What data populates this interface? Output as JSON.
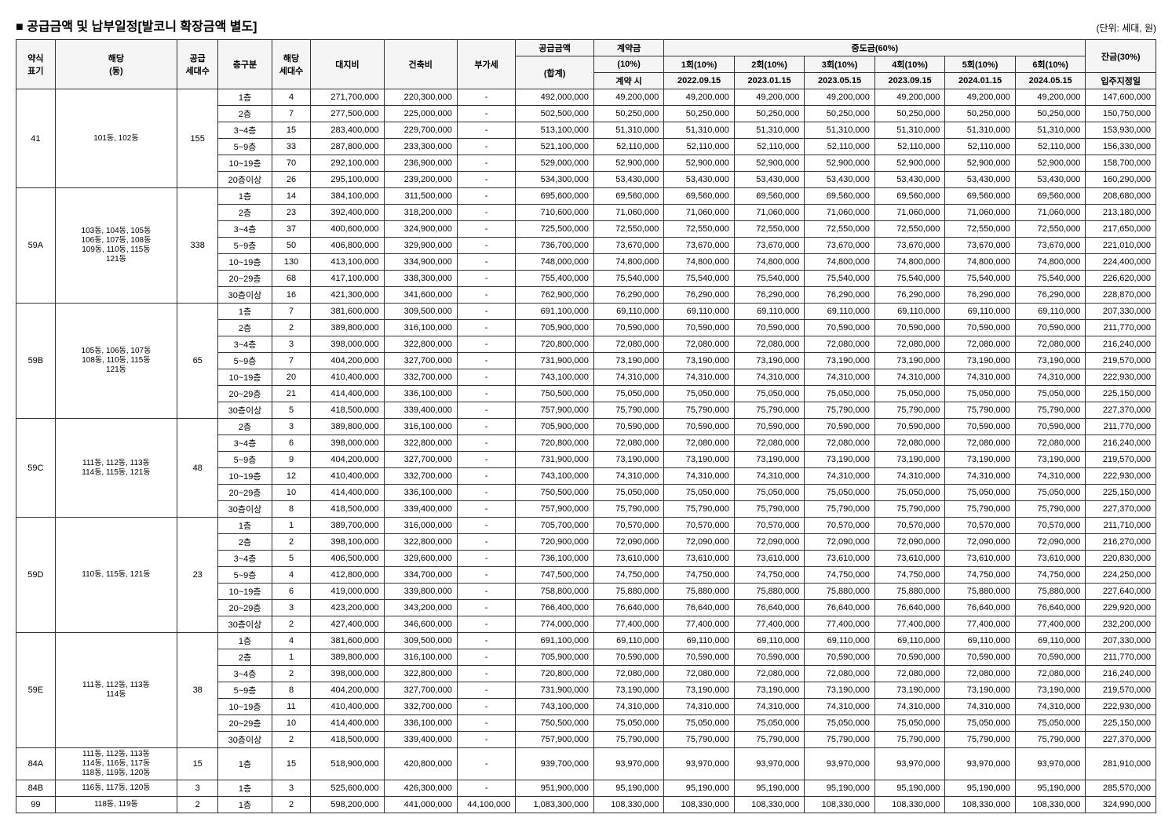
{
  "title": "■ 공급금액 및 납부일정[발코니 확장금액 별도]",
  "unit": "(단위: 세대, 원)",
  "headers": {
    "yak": "약식\n표기",
    "dong": "해당\n(동)",
    "supply": "공급\n세대수",
    "floor": "층구분",
    "count": "해당\n세대수",
    "land": "대지비",
    "build": "건축비",
    "vat": "부가세",
    "total1": "공급금액",
    "total2": "(합계)",
    "contract1": "계약금",
    "contract2": "(10%)",
    "contract3": "계약 시",
    "mid_group": "중도금(60%)",
    "mid1": "1회(10%)",
    "mid2": "2회(10%)",
    "mid3": "3회(10%)",
    "mid4": "4회(10%)",
    "mid5": "5회(10%)",
    "mid6": "6회(10%)",
    "date1": "2022.09.15",
    "date2": "2023.01.15",
    "date3": "2023.05.15",
    "date4": "2023.09.15",
    "date5": "2024.01.15",
    "date6": "2024.05.15",
    "remain": "잔금(30%)",
    "remain_date": "입주지정일"
  },
  "groups": [
    {
      "yak": "41",
      "dong": "101동, 102동",
      "supply": "155",
      "rows": [
        {
          "floor": "1층",
          "count": "4",
          "land": "271,700,000",
          "build": "220,300,000",
          "vat": "-",
          "total": "492,000,000",
          "contract": "49,200,000",
          "mid": "49,200,000",
          "remain": "147,600,000"
        },
        {
          "floor": "2층",
          "count": "7",
          "land": "277,500,000",
          "build": "225,000,000",
          "vat": "-",
          "total": "502,500,000",
          "contract": "50,250,000",
          "mid": "50,250,000",
          "remain": "150,750,000"
        },
        {
          "floor": "3~4층",
          "count": "15",
          "land": "283,400,000",
          "build": "229,700,000",
          "vat": "-",
          "total": "513,100,000",
          "contract": "51,310,000",
          "mid": "51,310,000",
          "remain": "153,930,000"
        },
        {
          "floor": "5~9층",
          "count": "33",
          "land": "287,800,000",
          "build": "233,300,000",
          "vat": "-",
          "total": "521,100,000",
          "contract": "52,110,000",
          "mid": "52,110,000",
          "remain": "156,330,000"
        },
        {
          "floor": "10~19층",
          "count": "70",
          "land": "292,100,000",
          "build": "236,900,000",
          "vat": "-",
          "total": "529,000,000",
          "contract": "52,900,000",
          "mid": "52,900,000",
          "remain": "158,700,000"
        },
        {
          "floor": "20층이상",
          "count": "26",
          "land": "295,100,000",
          "build": "239,200,000",
          "vat": "-",
          "total": "534,300,000",
          "contract": "53,430,000",
          "mid": "53,430,000",
          "remain": "160,290,000"
        }
      ]
    },
    {
      "yak": "59A",
      "dong": "103동, 104동, 105동\n106동, 107동, 108동\n109동, 110동, 115동\n121동",
      "supply": "338",
      "rows": [
        {
          "floor": "1층",
          "count": "14",
          "land": "384,100,000",
          "build": "311,500,000",
          "vat": "-",
          "total": "695,600,000",
          "contract": "69,560,000",
          "mid": "69,560,000",
          "remain": "208,680,000"
        },
        {
          "floor": "2층",
          "count": "23",
          "land": "392,400,000",
          "build": "318,200,000",
          "vat": "-",
          "total": "710,600,000",
          "contract": "71,060,000",
          "mid": "71,060,000",
          "remain": "213,180,000"
        },
        {
          "floor": "3~4층",
          "count": "37",
          "land": "400,600,000",
          "build": "324,900,000",
          "vat": "-",
          "total": "725,500,000",
          "contract": "72,550,000",
          "mid": "72,550,000",
          "remain": "217,650,000"
        },
        {
          "floor": "5~9층",
          "count": "50",
          "land": "406,800,000",
          "build": "329,900,000",
          "vat": "-",
          "total": "736,700,000",
          "contract": "73,670,000",
          "mid": "73,670,000",
          "remain": "221,010,000"
        },
        {
          "floor": "10~19층",
          "count": "130",
          "land": "413,100,000",
          "build": "334,900,000",
          "vat": "-",
          "total": "748,000,000",
          "contract": "74,800,000",
          "mid": "74,800,000",
          "remain": "224,400,000"
        },
        {
          "floor": "20~29층",
          "count": "68",
          "land": "417,100,000",
          "build": "338,300,000",
          "vat": "-",
          "total": "755,400,000",
          "contract": "75,540,000",
          "mid": "75,540,000",
          "remain": "226,620,000"
        },
        {
          "floor": "30층이상",
          "count": "16",
          "land": "421,300,000",
          "build": "341,600,000",
          "vat": "-",
          "total": "762,900,000",
          "contract": "76,290,000",
          "mid": "76,290,000",
          "remain": "228,870,000"
        }
      ]
    },
    {
      "yak": "59B",
      "dong": "105동, 106동, 107동\n108동, 110동, 115동\n121동",
      "supply": "65",
      "rows": [
        {
          "floor": "1층",
          "count": "7",
          "land": "381,600,000",
          "build": "309,500,000",
          "vat": "-",
          "total": "691,100,000",
          "contract": "69,110,000",
          "mid": "69,110,000",
          "remain": "207,330,000"
        },
        {
          "floor": "2층",
          "count": "2",
          "land": "389,800,000",
          "build": "316,100,000",
          "vat": "-",
          "total": "705,900,000",
          "contract": "70,590,000",
          "mid": "70,590,000",
          "remain": "211,770,000"
        },
        {
          "floor": "3~4층",
          "count": "3",
          "land": "398,000,000",
          "build": "322,800,000",
          "vat": "-",
          "total": "720,800,000",
          "contract": "72,080,000",
          "mid": "72,080,000",
          "remain": "216,240,000"
        },
        {
          "floor": "5~9층",
          "count": "7",
          "land": "404,200,000",
          "build": "327,700,000",
          "vat": "-",
          "total": "731,900,000",
          "contract": "73,190,000",
          "mid": "73,190,000",
          "remain": "219,570,000"
        },
        {
          "floor": "10~19층",
          "count": "20",
          "land": "410,400,000",
          "build": "332,700,000",
          "vat": "-",
          "total": "743,100,000",
          "contract": "74,310,000",
          "mid": "74,310,000",
          "remain": "222,930,000"
        },
        {
          "floor": "20~29층",
          "count": "21",
          "land": "414,400,000",
          "build": "336,100,000",
          "vat": "-",
          "total": "750,500,000",
          "contract": "75,050,000",
          "mid": "75,050,000",
          "remain": "225,150,000"
        },
        {
          "floor": "30층이상",
          "count": "5",
          "land": "418,500,000",
          "build": "339,400,000",
          "vat": "-",
          "total": "757,900,000",
          "contract": "75,790,000",
          "mid": "75,790,000",
          "remain": "227,370,000"
        }
      ]
    },
    {
      "yak": "59C",
      "dong": "111동, 112동, 113동\n114동, 115동, 121동",
      "supply": "48",
      "rows": [
        {
          "floor": "2층",
          "count": "3",
          "land": "389,800,000",
          "build": "316,100,000",
          "vat": "-",
          "total": "705,900,000",
          "contract": "70,590,000",
          "mid": "70,590,000",
          "remain": "211,770,000"
        },
        {
          "floor": "3~4층",
          "count": "6",
          "land": "398,000,000",
          "build": "322,800,000",
          "vat": "-",
          "total": "720,800,000",
          "contract": "72,080,000",
          "mid": "72,080,000",
          "remain": "216,240,000"
        },
        {
          "floor": "5~9층",
          "count": "9",
          "land": "404,200,000",
          "build": "327,700,000",
          "vat": "-",
          "total": "731,900,000",
          "contract": "73,190,000",
          "mid": "73,190,000",
          "remain": "219,570,000"
        },
        {
          "floor": "10~19층",
          "count": "12",
          "land": "410,400,000",
          "build": "332,700,000",
          "vat": "-",
          "total": "743,100,000",
          "contract": "74,310,000",
          "mid": "74,310,000",
          "remain": "222,930,000"
        },
        {
          "floor": "20~29층",
          "count": "10",
          "land": "414,400,000",
          "build": "336,100,000",
          "vat": "-",
          "total": "750,500,000",
          "contract": "75,050,000",
          "mid": "75,050,000",
          "remain": "225,150,000"
        },
        {
          "floor": "30층이상",
          "count": "8",
          "land": "418,500,000",
          "build": "339,400,000",
          "vat": "-",
          "total": "757,900,000",
          "contract": "75,790,000",
          "mid": "75,790,000",
          "remain": "227,370,000"
        }
      ]
    },
    {
      "yak": "59D",
      "dong": "110동, 115동, 121동",
      "supply": "23",
      "rows": [
        {
          "floor": "1층",
          "count": "1",
          "land": "389,700,000",
          "build": "316,000,000",
          "vat": "-",
          "total": "705,700,000",
          "contract": "70,570,000",
          "mid": "70,570,000",
          "remain": "211,710,000"
        },
        {
          "floor": "2층",
          "count": "2",
          "land": "398,100,000",
          "build": "322,800,000",
          "vat": "-",
          "total": "720,900,000",
          "contract": "72,090,000",
          "mid": "72,090,000",
          "remain": "216,270,000"
        },
        {
          "floor": "3~4층",
          "count": "5",
          "land": "406,500,000",
          "build": "329,600,000",
          "vat": "-",
          "total": "736,100,000",
          "contract": "73,610,000",
          "mid": "73,610,000",
          "remain": "220,830,000"
        },
        {
          "floor": "5~9층",
          "count": "4",
          "land": "412,800,000",
          "build": "334,700,000",
          "vat": "-",
          "total": "747,500,000",
          "contract": "74,750,000",
          "mid": "74,750,000",
          "remain": "224,250,000"
        },
        {
          "floor": "10~19층",
          "count": "6",
          "land": "419,000,000",
          "build": "339,800,000",
          "vat": "-",
          "total": "758,800,000",
          "contract": "75,880,000",
          "mid": "75,880,000",
          "remain": "227,640,000"
        },
        {
          "floor": "20~29층",
          "count": "3",
          "land": "423,200,000",
          "build": "343,200,000",
          "vat": "-",
          "total": "766,400,000",
          "contract": "76,640,000",
          "mid": "76,640,000",
          "remain": "229,920,000"
        },
        {
          "floor": "30층이상",
          "count": "2",
          "land": "427,400,000",
          "build": "346,600,000",
          "vat": "-",
          "total": "774,000,000",
          "contract": "77,400,000",
          "mid": "77,400,000",
          "remain": "232,200,000"
        }
      ]
    },
    {
      "yak": "59E",
      "dong": "111동, 112동, 113동\n114동",
      "supply": "38",
      "rows": [
        {
          "floor": "1층",
          "count": "4",
          "land": "381,600,000",
          "build": "309,500,000",
          "vat": "-",
          "total": "691,100,000",
          "contract": "69,110,000",
          "mid": "69,110,000",
          "remain": "207,330,000"
        },
        {
          "floor": "2층",
          "count": "1",
          "land": "389,800,000",
          "build": "316,100,000",
          "vat": "-",
          "total": "705,900,000",
          "contract": "70,590,000",
          "mid": "70,590,000",
          "remain": "211,770,000"
        },
        {
          "floor": "3~4층",
          "count": "2",
          "land": "398,000,000",
          "build": "322,800,000",
          "vat": "-",
          "total": "720,800,000",
          "contract": "72,080,000",
          "mid": "72,080,000",
          "remain": "216,240,000"
        },
        {
          "floor": "5~9층",
          "count": "8",
          "land": "404,200,000",
          "build": "327,700,000",
          "vat": "-",
          "total": "731,900,000",
          "contract": "73,190,000",
          "mid": "73,190,000",
          "remain": "219,570,000"
        },
        {
          "floor": "10~19층",
          "count": "11",
          "land": "410,400,000",
          "build": "332,700,000",
          "vat": "-",
          "total": "743,100,000",
          "contract": "74,310,000",
          "mid": "74,310,000",
          "remain": "222,930,000"
        },
        {
          "floor": "20~29층",
          "count": "10",
          "land": "414,400,000",
          "build": "336,100,000",
          "vat": "-",
          "total": "750,500,000",
          "contract": "75,050,000",
          "mid": "75,050,000",
          "remain": "225,150,000"
        },
        {
          "floor": "30층이상",
          "count": "2",
          "land": "418,500,000",
          "build": "339,400,000",
          "vat": "-",
          "total": "757,900,000",
          "contract": "75,790,000",
          "mid": "75,790,000",
          "remain": "227,370,000"
        }
      ]
    },
    {
      "yak": "84A",
      "dong": "111동, 112동, 113동\n114동, 116동, 117동\n118동, 119동, 120동",
      "supply": "15",
      "rows": [
        {
          "floor": "1층",
          "count": "15",
          "land": "518,900,000",
          "build": "420,800,000",
          "vat": "-",
          "total": "939,700,000",
          "contract": "93,970,000",
          "mid": "93,970,000",
          "remain": "281,910,000"
        }
      ]
    },
    {
      "yak": "84B",
      "dong": "116동, 117동, 120동",
      "supply": "3",
      "rows": [
        {
          "floor": "1층",
          "count": "3",
          "land": "525,600,000",
          "build": "426,300,000",
          "vat": "-",
          "total": "951,900,000",
          "contract": "95,190,000",
          "mid": "95,190,000",
          "remain": "285,570,000"
        }
      ]
    },
    {
      "yak": "99",
      "dong": "118동, 119동",
      "supply": "2",
      "rows": [
        {
          "floor": "1층",
          "count": "2",
          "land": "598,200,000",
          "build": "441,000,000",
          "vat": "44,100,000",
          "total": "1,083,300,000",
          "contract": "108,330,000",
          "mid": "108,330,000",
          "remain": "324,990,000"
        }
      ]
    }
  ]
}
